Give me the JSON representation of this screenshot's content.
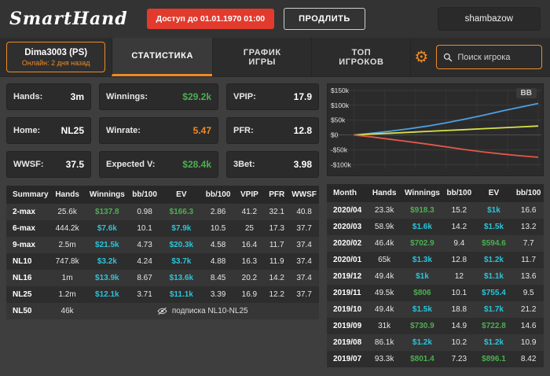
{
  "topbar": {
    "logo": "SmartHand",
    "access_badge": "Доступ до 01.01.1970 01:00",
    "extend_button": "ПРОДЛИТЬ",
    "username": "shambazow"
  },
  "nav": {
    "player_name": "Dima3003 (PS)",
    "player_online": "Онлайн: 2 дня назад",
    "tabs": [
      {
        "slug": "statistics",
        "label": "СТАТИСТИКА",
        "active": true
      },
      {
        "slug": "game-chart",
        "label": "ГРАФИК ИГРЫ",
        "active": false
      },
      {
        "slug": "top-players",
        "label": "ТОП ИГРОКОВ",
        "active": false
      }
    ],
    "search_placeholder": "Поиск игрока"
  },
  "colors": {
    "accent": "#ef8a24",
    "red": "#e23b2e",
    "green": "#4caf50",
    "cyan": "#2bc4d9"
  },
  "stat_boxes": [
    {
      "slug": "hands",
      "label": "Hands:",
      "value": "3m",
      "color": "#ffffff"
    },
    {
      "slug": "winnings",
      "label": "Winnings:",
      "value": "$29.2k",
      "color": "#4caf50"
    },
    {
      "slug": "vpip",
      "label": "VPIP:",
      "value": "17.9",
      "color": "#ffffff"
    },
    {
      "slug": "home",
      "label": "Home:",
      "value": "NL25",
      "color": "#ffffff"
    },
    {
      "slug": "winrate",
      "label": "Winrate:",
      "value": "5.47",
      "color": "#ef8a24"
    },
    {
      "slug": "pfr",
      "label": "PFR:",
      "value": "12.8",
      "color": "#ffffff"
    },
    {
      "slug": "wwsf",
      "label": "WWSF:",
      "value": "37.5",
      "color": "#ffffff"
    },
    {
      "slug": "expected-v",
      "label": "Expected V:",
      "value": "$28.4k",
      "color": "#4caf50"
    },
    {
      "slug": "3bet",
      "label": "3Bet:",
      "value": "3.98",
      "color": "#ffffff"
    }
  ],
  "summary_table": {
    "headers": [
      "Summary",
      "Hands",
      "Winnings",
      "bb/100",
      "EV",
      "bb/100",
      "VPIP",
      "PFR",
      "WWSF"
    ],
    "rows": [
      {
        "cells": [
          "2-max",
          "25.6k",
          "$137.8",
          "0.98",
          "$166.3",
          "2.86",
          "41.2",
          "32.1",
          "40.8"
        ],
        "win_color": "#4caf50",
        "ev_color": "#4caf50"
      },
      {
        "cells": [
          "6-max",
          "444.2k",
          "$7.6k",
          "10.1",
          "$7.9k",
          "10.5",
          "25",
          "17.3",
          "37.7"
        ],
        "win_color": "#2bc4d9",
        "ev_color": "#2bc4d9"
      },
      {
        "cells": [
          "9-max",
          "2.5m",
          "$21.5k",
          "4.73",
          "$20.3k",
          "4.58",
          "16.4",
          "11.7",
          "37.4"
        ],
        "win_color": "#2bc4d9",
        "ev_color": "#2bc4d9"
      },
      {
        "cells": [
          "NL10",
          "747.8k",
          "$3.2k",
          "4.24",
          "$3.7k",
          "4.88",
          "16.3",
          "11.9",
          "37.4"
        ],
        "win_color": "#2bc4d9",
        "ev_color": "#2bc4d9"
      },
      {
        "cells": [
          "NL16",
          "1m",
          "$13.9k",
          "8.67",
          "$13.6k",
          "8.45",
          "20.2",
          "14.2",
          "37.4"
        ],
        "win_color": "#2bc4d9",
        "ev_color": "#2bc4d9"
      },
      {
        "cells": [
          "NL25",
          "1.2m",
          "$12.1k",
          "3.71",
          "$11.1k",
          "3.39",
          "16.9",
          "12.2",
          "37.7"
        ],
        "win_color": "#2bc4d9",
        "ev_color": "#2bc4d9"
      }
    ],
    "locked_row": {
      "label": "NL50",
      "hands": "46k",
      "notice": "подписка NL10-NL25"
    }
  },
  "monthly_table": {
    "headers": [
      "Month",
      "Hands",
      "Winnings",
      "bb/100",
      "EV",
      "bb/100"
    ],
    "rows": [
      {
        "cells": [
          "2020/04",
          "23.3k",
          "$918.3",
          "15.2",
          "$1k",
          "16.6"
        ],
        "win_color": "#4caf50",
        "ev_color": "#2bc4d9"
      },
      {
        "cells": [
          "2020/03",
          "58.9k",
          "$1.6k",
          "14.2",
          "$1.5k",
          "13.2"
        ],
        "win_color": "#2bc4d9",
        "ev_color": "#2bc4d9"
      },
      {
        "cells": [
          "2020/02",
          "46.4k",
          "$702.9",
          "9.4",
          "$594.6",
          "7.7"
        ],
        "win_color": "#4caf50",
        "ev_color": "#4caf50"
      },
      {
        "cells": [
          "2020/01",
          "65k",
          "$1.3k",
          "12.8",
          "$1.2k",
          "11.7"
        ],
        "win_color": "#2bc4d9",
        "ev_color": "#2bc4d9"
      },
      {
        "cells": [
          "2019/12",
          "49.4k",
          "$1k",
          "12",
          "$1.1k",
          "13.6"
        ],
        "win_color": "#2bc4d9",
        "ev_color": "#2bc4d9"
      },
      {
        "cells": [
          "2019/11",
          "49.5k",
          "$806",
          "10.1",
          "$755.4",
          "9.5"
        ],
        "win_color": "#4caf50",
        "ev_color": "#2bc4d9"
      },
      {
        "cells": [
          "2019/10",
          "49.4k",
          "$1.5k",
          "18.8",
          "$1.7k",
          "21.2"
        ],
        "win_color": "#2bc4d9",
        "ev_color": "#2bc4d9"
      },
      {
        "cells": [
          "2019/09",
          "31k",
          "$730.9",
          "14.9",
          "$722.8",
          "14.6"
        ],
        "win_color": "#4caf50",
        "ev_color": "#4caf50"
      },
      {
        "cells": [
          "2019/08",
          "86.1k",
          "$1.2k",
          "10.2",
          "$1.2k",
          "10.9"
        ],
        "win_color": "#2bc4d9",
        "ev_color": "#2bc4d9"
      },
      {
        "cells": [
          "2019/07",
          "93.3k",
          "$801.4",
          "7.23",
          "$896.1",
          "8.42"
        ],
        "win_color": "#4caf50",
        "ev_color": "#4caf50"
      }
    ]
  },
  "chart_data": {
    "type": "line",
    "title": "",
    "y_unit_label": "BB",
    "ytick_labels": [
      "$150k",
      "$100k",
      "$50k",
      "$0",
      "-$50k",
      "-$100k"
    ],
    "ytick_values": [
      150,
      100,
      50,
      0,
      -50,
      -100
    ],
    "ylim": [
      -115,
      155
    ],
    "grid": true,
    "legend_position": "none",
    "series": [
      {
        "name": "blue-line",
        "color": "#4f9fe0",
        "values_k": [
          0,
          6,
          13,
          21,
          30,
          41,
          53,
          66,
          80,
          93,
          106
        ]
      },
      {
        "name": "yellow-line",
        "color": "#d9e14a",
        "values_k": [
          0,
          3,
          6,
          9,
          12,
          15,
          18,
          21,
          24,
          27,
          30
        ]
      },
      {
        "name": "red-line",
        "color": "#e2574b",
        "values_k": [
          0,
          -7,
          -15,
          -23,
          -31,
          -40,
          -49,
          -57,
          -64,
          -70,
          -75
        ]
      }
    ]
  }
}
